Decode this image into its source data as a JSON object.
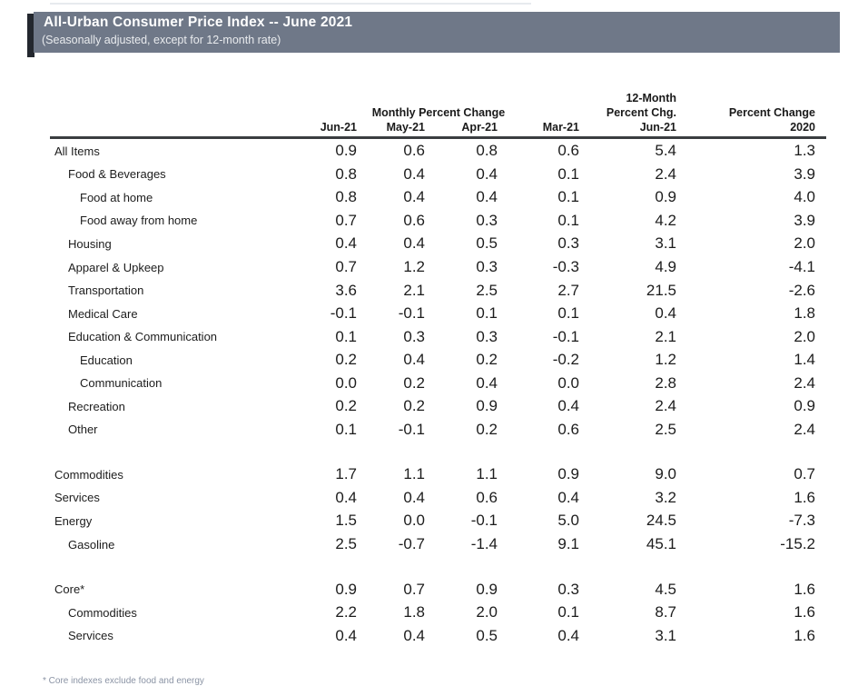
{
  "page": {
    "title_bar": {
      "title": "All-Urban Consumer Price Index -- June 2021",
      "subtitle": "(Seasonally adjusted, except for 12-month rate)",
      "bar_color": "#6f7888",
      "edge_accent_color": "#23272e"
    },
    "table": {
      "group_headers": {
        "monthly": "Monthly Percent Change",
        "twelve_month_top": "12-Month",
        "twelve_month_bottom": "Percent Chg.",
        "pct_change_2020": "Percent Change"
      },
      "column_headers": [
        "Jun-21",
        "May-21",
        "Apr-21",
        "Mar-21",
        "Jun-21",
        "2020"
      ],
      "rows": [
        {
          "label": "All Items",
          "indent": 0,
          "gap_before": false,
          "values": [
            "0.9",
            "0.6",
            "0.8",
            "0.6",
            "5.4",
            "1.3"
          ]
        },
        {
          "label": "Food & Beverages",
          "indent": 1,
          "gap_before": false,
          "values": [
            "0.8",
            "0.4",
            "0.4",
            "0.1",
            "2.4",
            "3.9"
          ]
        },
        {
          "label": "Food at home",
          "indent": 2,
          "gap_before": false,
          "values": [
            "0.8",
            "0.4",
            "0.4",
            "0.1",
            "0.9",
            "4.0"
          ]
        },
        {
          "label": "Food away from home",
          "indent": 2,
          "gap_before": false,
          "values": [
            "0.7",
            "0.6",
            "0.3",
            "0.1",
            "4.2",
            "3.9"
          ]
        },
        {
          "label": "Housing",
          "indent": 1,
          "gap_before": false,
          "values": [
            "0.4",
            "0.4",
            "0.5",
            "0.3",
            "3.1",
            "2.0"
          ]
        },
        {
          "label": "Apparel & Upkeep",
          "indent": 1,
          "gap_before": false,
          "values": [
            "0.7",
            "1.2",
            "0.3",
            "-0.3",
            "4.9",
            "-4.1"
          ]
        },
        {
          "label": "Transportation",
          "indent": 1,
          "gap_before": false,
          "values": [
            "3.6",
            "2.1",
            "2.5",
            "2.7",
            "21.5",
            "-2.6"
          ]
        },
        {
          "label": "Medical Care",
          "indent": 1,
          "gap_before": false,
          "values": [
            "-0.1",
            "-0.1",
            "0.1",
            "0.1",
            "0.4",
            "1.8"
          ]
        },
        {
          "label": "Education & Communication",
          "indent": 1,
          "gap_before": false,
          "values": [
            "0.1",
            "0.3",
            "0.3",
            "-0.1",
            "2.1",
            "2.0"
          ]
        },
        {
          "label": "Education",
          "indent": 2,
          "gap_before": false,
          "values": [
            "0.2",
            "0.4",
            "0.2",
            "-0.2",
            "1.2",
            "1.4"
          ]
        },
        {
          "label": "Communication",
          "indent": 2,
          "gap_before": false,
          "values": [
            "0.0",
            "0.2",
            "0.4",
            "0.0",
            "2.8",
            "2.4"
          ]
        },
        {
          "label": "Recreation",
          "indent": 1,
          "gap_before": false,
          "values": [
            "0.2",
            "0.2",
            "0.9",
            "0.4",
            "2.4",
            "0.9"
          ]
        },
        {
          "label": "Other",
          "indent": 1,
          "gap_before": false,
          "values": [
            "0.1",
            "-0.1",
            "0.2",
            "0.6",
            "2.5",
            "2.4"
          ]
        },
        {
          "label": "Commodities",
          "indent": 0,
          "gap_before": true,
          "values": [
            "1.7",
            "1.1",
            "1.1",
            "0.9",
            "9.0",
            "0.7"
          ]
        },
        {
          "label": "Services",
          "indent": 0,
          "gap_before": false,
          "values": [
            "0.4",
            "0.4",
            "0.6",
            "0.4",
            "3.2",
            "1.6"
          ]
        },
        {
          "label": "Energy",
          "indent": 0,
          "gap_before": false,
          "values": [
            "1.5",
            "0.0",
            "-0.1",
            "5.0",
            "24.5",
            "-7.3"
          ]
        },
        {
          "label": "Gasoline",
          "indent": 1,
          "gap_before": false,
          "values": [
            "2.5",
            "-0.7",
            "-1.4",
            "9.1",
            "45.1",
            "-15.2"
          ]
        },
        {
          "label": "Core*",
          "indent": 0,
          "gap_before": true,
          "values": [
            "0.9",
            "0.7",
            "0.9",
            "0.3",
            "4.5",
            "1.6"
          ]
        },
        {
          "label": "Commodities",
          "indent": 1,
          "gap_before": false,
          "values": [
            "2.2",
            "1.8",
            "2.0",
            "0.1",
            "8.7",
            "1.6"
          ]
        },
        {
          "label": "Services",
          "indent": 1,
          "gap_before": false,
          "values": [
            "0.4",
            "0.4",
            "0.5",
            "0.4",
            "3.1",
            "1.6"
          ]
        }
      ],
      "footnote": "* Core indexes exclude food and energy"
    }
  }
}
